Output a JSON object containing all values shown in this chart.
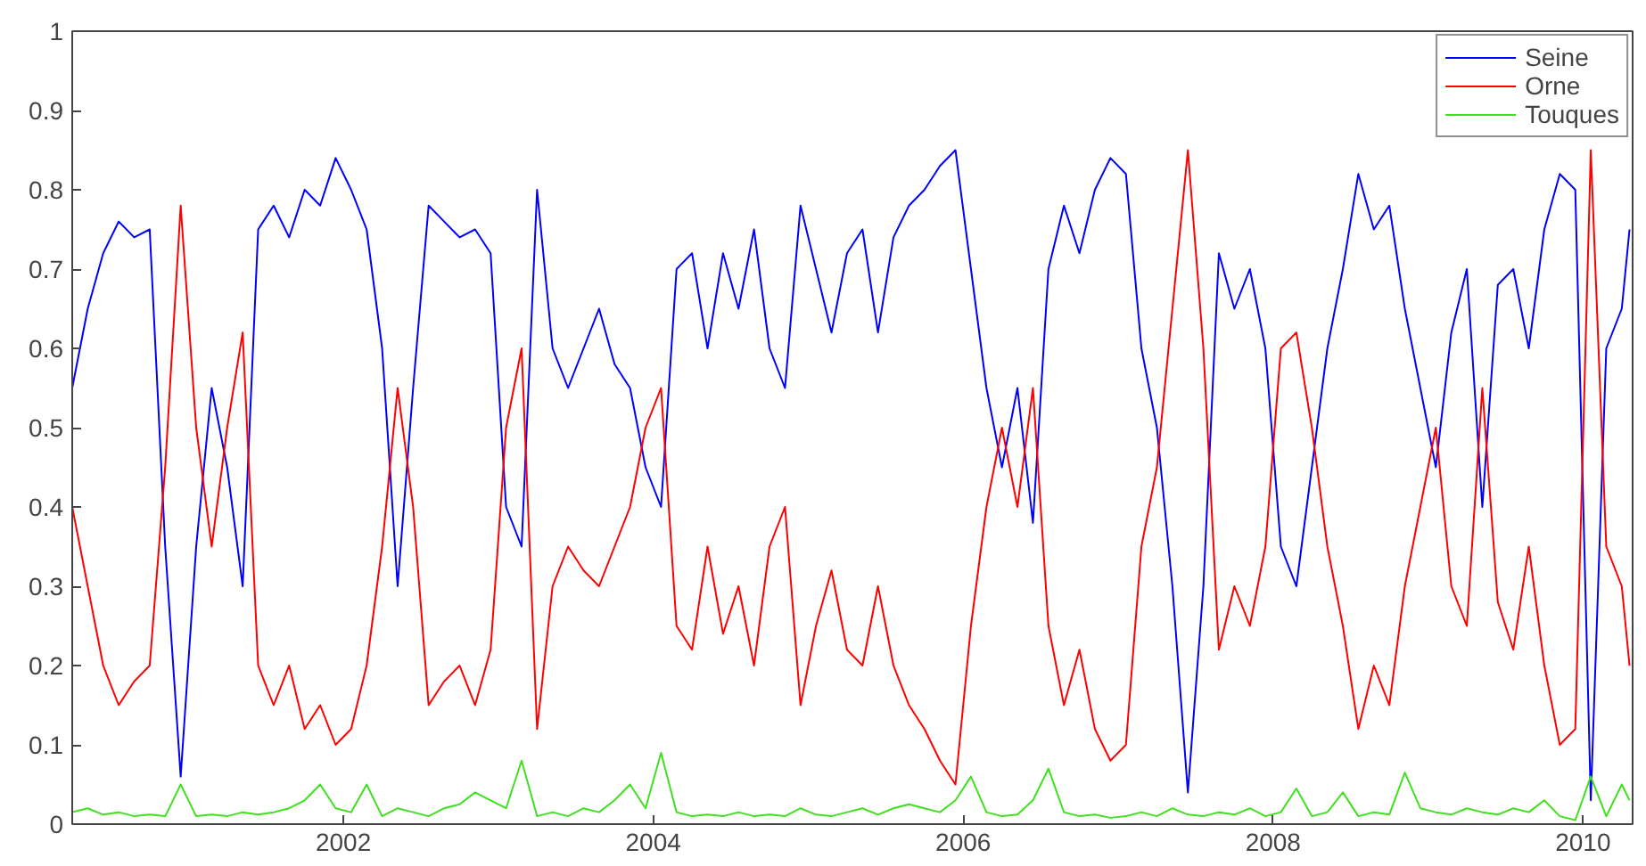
{
  "chart_data": {
    "type": "line",
    "legend": "top right",
    "grid": false,
    "line_style": "solid",
    "xlim": [
      2000.25,
      2010.32
    ],
    "xticks": [
      2002,
      2004,
      2006,
      2008,
      2010
    ],
    "ylim": [
      0,
      1
    ],
    "yticks": [
      0,
      0.1,
      0.2,
      0.3,
      0.4,
      0.5,
      0.6,
      0.7,
      0.8,
      0.9,
      1
    ],
    "x": [
      2000.25,
      2000.35,
      2000.45,
      2000.55,
      2000.65,
      2000.75,
      2000.85,
      2000.95,
      2001.05,
      2001.15,
      2001.25,
      2001.35,
      2001.45,
      2001.55,
      2001.65,
      2001.75,
      2001.85,
      2001.95,
      2002.05,
      2002.15,
      2002.25,
      2002.35,
      2002.45,
      2002.55,
      2002.65,
      2002.75,
      2002.85,
      2002.95,
      2003.05,
      2003.15,
      2003.25,
      2003.35,
      2003.45,
      2003.55,
      2003.65,
      2003.75,
      2003.85,
      2003.95,
      2004.05,
      2004.15,
      2004.25,
      2004.35,
      2004.45,
      2004.55,
      2004.65,
      2004.75,
      2004.85,
      2004.95,
      2005.05,
      2005.15,
      2005.25,
      2005.35,
      2005.45,
      2005.55,
      2005.65,
      2005.75,
      2005.85,
      2005.95,
      2006.05,
      2006.15,
      2006.25,
      2006.35,
      2006.45,
      2006.55,
      2006.65,
      2006.75,
      2006.85,
      2006.95,
      2007.05,
      2007.15,
      2007.25,
      2007.35,
      2007.45,
      2007.55,
      2007.65,
      2007.75,
      2007.85,
      2007.95,
      2008.05,
      2008.15,
      2008.25,
      2008.35,
      2008.45,
      2008.55,
      2008.65,
      2008.75,
      2008.85,
      2008.95,
      2009.05,
      2009.15,
      2009.25,
      2009.35,
      2009.45,
      2009.55,
      2009.65,
      2009.75,
      2009.85,
      2009.95,
      2010.05,
      2010.15,
      2010.25,
      2010.3
    ],
    "series": [
      {
        "name": "Seine",
        "color": "#0000ff",
        "values": [
          0.55,
          0.65,
          0.72,
          0.76,
          0.74,
          0.75,
          0.35,
          0.06,
          0.35,
          0.55,
          0.45,
          0.3,
          0.75,
          0.78,
          0.74,
          0.8,
          0.78,
          0.84,
          0.8,
          0.75,
          0.6,
          0.3,
          0.55,
          0.78,
          0.76,
          0.74,
          0.75,
          0.72,
          0.4,
          0.35,
          0.8,
          0.6,
          0.55,
          0.6,
          0.65,
          0.58,
          0.55,
          0.45,
          0.4,
          0.7,
          0.72,
          0.6,
          0.72,
          0.65,
          0.75,
          0.6,
          0.55,
          0.78,
          0.7,
          0.62,
          0.72,
          0.75,
          0.62,
          0.74,
          0.78,
          0.8,
          0.83,
          0.85,
          0.7,
          0.55,
          0.45,
          0.55,
          0.38,
          0.7,
          0.78,
          0.72,
          0.8,
          0.84,
          0.82,
          0.6,
          0.5,
          0.3,
          0.04,
          0.3,
          0.72,
          0.65,
          0.7,
          0.6,
          0.35,
          0.3,
          0.45,
          0.6,
          0.7,
          0.82,
          0.75,
          0.78,
          0.65,
          0.55,
          0.45,
          0.62,
          0.7,
          0.4,
          0.68,
          0.7,
          0.6,
          0.75,
          0.82,
          0.8,
          0.03,
          0.6,
          0.65,
          0.75
        ]
      },
      {
        "name": "Orne",
        "color": "#ff0000",
        "values": [
          0.4,
          0.3,
          0.2,
          0.15,
          0.18,
          0.2,
          0.45,
          0.78,
          0.5,
          0.35,
          0.5,
          0.62,
          0.2,
          0.15,
          0.2,
          0.12,
          0.15,
          0.1,
          0.12,
          0.2,
          0.35,
          0.55,
          0.4,
          0.15,
          0.18,
          0.2,
          0.15,
          0.22,
          0.5,
          0.6,
          0.12,
          0.3,
          0.35,
          0.32,
          0.3,
          0.35,
          0.4,
          0.5,
          0.55,
          0.25,
          0.22,
          0.35,
          0.24,
          0.3,
          0.2,
          0.35,
          0.4,
          0.15,
          0.25,
          0.32,
          0.22,
          0.2,
          0.3,
          0.2,
          0.15,
          0.12,
          0.08,
          0.05,
          0.25,
          0.4,
          0.5,
          0.4,
          0.55,
          0.25,
          0.15,
          0.22,
          0.12,
          0.08,
          0.1,
          0.35,
          0.45,
          0.65,
          0.85,
          0.6,
          0.22,
          0.3,
          0.25,
          0.35,
          0.6,
          0.62,
          0.5,
          0.35,
          0.25,
          0.12,
          0.2,
          0.15,
          0.3,
          0.4,
          0.5,
          0.3,
          0.25,
          0.55,
          0.28,
          0.22,
          0.35,
          0.2,
          0.1,
          0.12,
          0.85,
          0.35,
          0.3,
          0.2
        ]
      },
      {
        "name": "Touques",
        "color": "#40e020",
        "values": [
          0.015,
          0.02,
          0.012,
          0.015,
          0.01,
          0.012,
          0.01,
          0.05,
          0.01,
          0.012,
          0.01,
          0.015,
          0.012,
          0.015,
          0.02,
          0.03,
          0.05,
          0.02,
          0.015,
          0.05,
          0.01,
          0.02,
          0.015,
          0.01,
          0.02,
          0.025,
          0.04,
          0.03,
          0.02,
          0.08,
          0.01,
          0.015,
          0.01,
          0.02,
          0.015,
          0.03,
          0.05,
          0.02,
          0.09,
          0.015,
          0.01,
          0.012,
          0.01,
          0.015,
          0.01,
          0.012,
          0.01,
          0.02,
          0.012,
          0.01,
          0.015,
          0.02,
          0.012,
          0.02,
          0.025,
          0.02,
          0.015,
          0.03,
          0.06,
          0.015,
          0.01,
          0.012,
          0.03,
          0.07,
          0.015,
          0.01,
          0.012,
          0.008,
          0.01,
          0.015,
          0.01,
          0.02,
          0.012,
          0.01,
          0.015,
          0.012,
          0.02,
          0.01,
          0.015,
          0.045,
          0.01,
          0.015,
          0.04,
          0.01,
          0.015,
          0.012,
          0.065,
          0.02,
          0.015,
          0.012,
          0.02,
          0.015,
          0.012,
          0.02,
          0.015,
          0.03,
          0.01,
          0.005,
          0.06,
          0.01,
          0.05,
          0.03
        ]
      }
    ]
  }
}
